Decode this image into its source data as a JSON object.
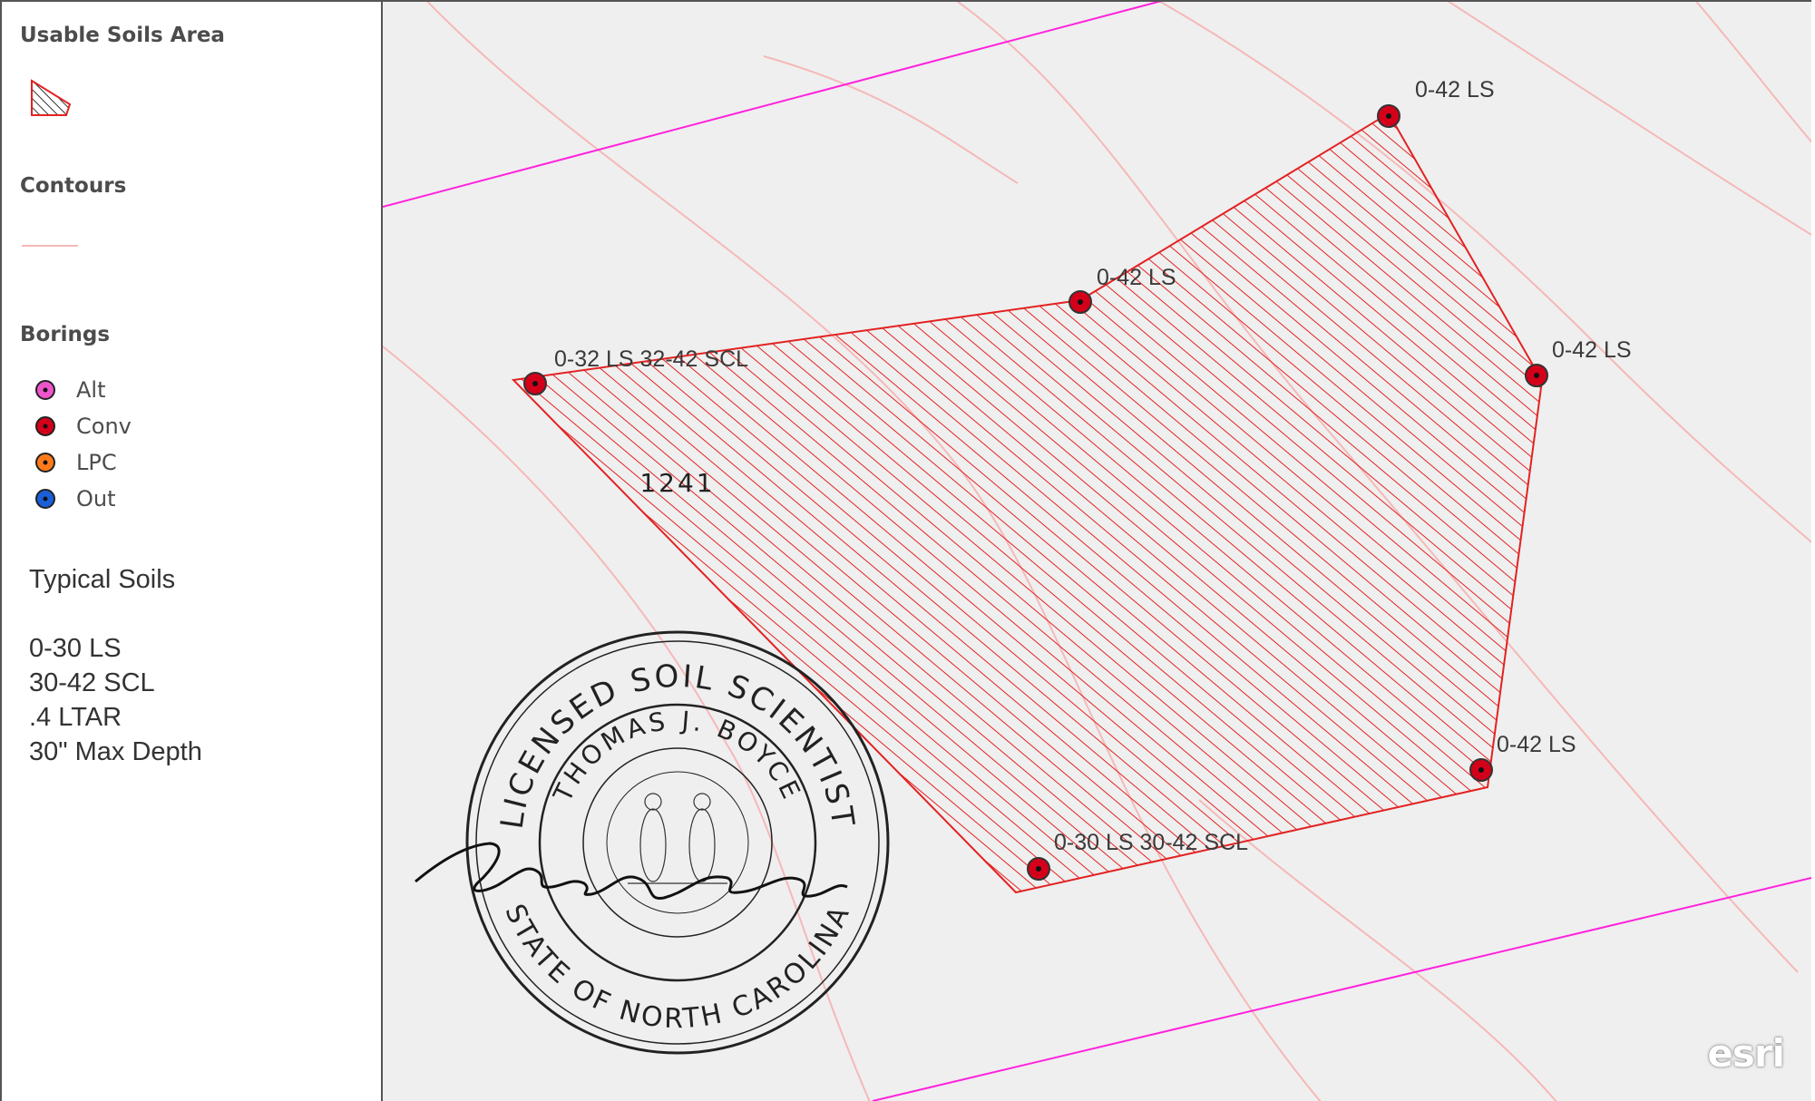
{
  "legend": {
    "sections": [
      {
        "title": "Usable Soils Area",
        "symbol": "hatched-polygon"
      },
      {
        "title": "Contours",
        "symbol": "line"
      },
      {
        "title": "Borings",
        "symbol": "point"
      }
    ],
    "borings": [
      {
        "label": "Alt",
        "color": "#ee55cc"
      },
      {
        "label": "Conv",
        "color": "#d4001a"
      },
      {
        "label": "LPC",
        "color": "#ff7a1a"
      },
      {
        "label": "Out",
        "color": "#1a5fd9"
      }
    ]
  },
  "notes": {
    "title": "Typical Soils",
    "lines": [
      "0-30 LS",
      "30-42 SCL",
      ".4 LTAR",
      "30\" Max Depth"
    ]
  },
  "map": {
    "boring_labels": [
      "0-42 LS",
      "0-42 LS",
      "0-32 LS 32-42 SCL",
      "0-42 LS",
      "0-42 LS",
      "0-30 LS 30-42 SCL"
    ],
    "seal": {
      "outer_text": "LICENSED SOIL SCIENTIST",
      "name": "THOMAS J. BOYCE",
      "number": "1241",
      "state_text": "STATE OF NORTH CAROLINA",
      "signature": "Thomas J. Boyce"
    },
    "attribution": "esri"
  },
  "colors": {
    "contour": "#f6b8b8",
    "parcel_line": "#ff22dd",
    "usable_area": "#e32222",
    "boring_conv": "#d4001a",
    "map_background": "#efefef"
  }
}
